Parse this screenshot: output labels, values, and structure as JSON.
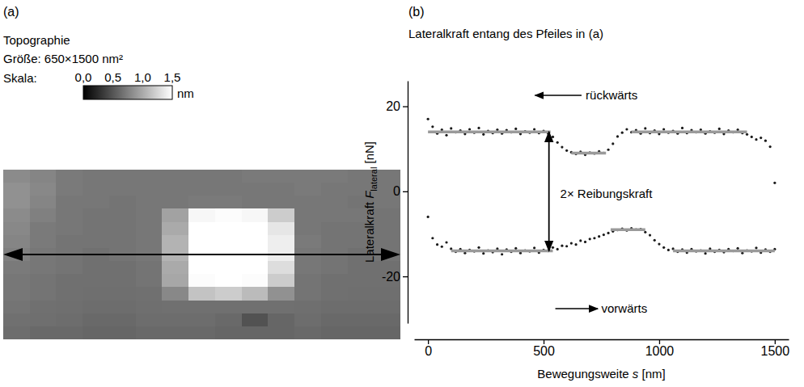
{
  "chart_data": [
    {
      "type": "heatmap",
      "label": "(a)",
      "title": "Topographie",
      "subtitle": "Größe: 650×1500 nm²",
      "tick_labels": false,
      "colorbar": {
        "title": "Skala:",
        "range": [
          0,
          1.5
        ],
        "ticks": [
          {
            "value": 0,
            "label": "0,0"
          },
          {
            "value": 0.5,
            "label": "0,5"
          },
          {
            "value": 1,
            "label": "1,0"
          },
          {
            "value": 1.5,
            "label": "1,5"
          }
        ],
        "unit": "nm"
      },
      "cells": [
        [
          0.82,
          0.78,
          0.72,
          0.7,
          0.7,
          0.7,
          0.7,
          0.7,
          0.7,
          0.72,
          0.72,
          0.72,
          0.72,
          0.7,
          0.7
        ],
        [
          0.85,
          0.8,
          0.72,
          0.7,
          0.7,
          0.7,
          0.7,
          0.7,
          0.7,
          0.7,
          0.7,
          0.72,
          0.7,
          0.7,
          0.7
        ],
        [
          0.85,
          0.78,
          0.7,
          0.7,
          0.68,
          0.7,
          0.7,
          0.72,
          0.72,
          0.7,
          0.7,
          0.7,
          0.7,
          0.68,
          0.7
        ],
        [
          0.82,
          0.75,
          0.7,
          0.68,
          0.68,
          0.7,
          0.95,
          1.45,
          1.48,
          1.45,
          1.2,
          0.7,
          0.7,
          0.7,
          0.68
        ],
        [
          0.8,
          0.72,
          0.7,
          0.68,
          0.68,
          0.7,
          1.0,
          1.5,
          1.5,
          1.5,
          1.35,
          0.7,
          0.68,
          0.68,
          0.68
        ],
        [
          0.78,
          0.72,
          0.68,
          0.68,
          0.68,
          0.7,
          1.05,
          1.5,
          1.5,
          1.5,
          1.4,
          0.72,
          0.68,
          0.68,
          0.68
        ],
        [
          0.75,
          0.7,
          0.68,
          0.66,
          0.68,
          0.7,
          1.05,
          1.5,
          1.5,
          1.5,
          1.4,
          0.7,
          0.68,
          0.66,
          0.68
        ],
        [
          0.72,
          0.7,
          0.68,
          0.66,
          0.66,
          0.68,
          1.0,
          1.5,
          1.5,
          1.5,
          1.3,
          0.7,
          0.68,
          0.66,
          0.66
        ],
        [
          0.7,
          0.68,
          0.66,
          0.66,
          0.66,
          0.68,
          0.98,
          1.48,
          1.5,
          1.48,
          1.2,
          0.68,
          0.66,
          0.66,
          0.66
        ],
        [
          0.7,
          0.68,
          0.66,
          0.65,
          0.65,
          0.66,
          0.8,
          1.15,
          1.2,
          1.1,
          0.85,
          0.68,
          0.66,
          0.65,
          0.65
        ],
        [
          0.68,
          0.66,
          0.65,
          0.64,
          0.64,
          0.65,
          0.66,
          0.66,
          0.66,
          0.66,
          0.66,
          0.65,
          0.64,
          0.64,
          0.64
        ],
        [
          0.66,
          0.65,
          0.64,
          0.62,
          0.62,
          0.64,
          0.64,
          0.64,
          0.62,
          0.48,
          0.6,
          0.64,
          0.62,
          0.62,
          0.62
        ],
        [
          0.64,
          0.62,
          0.62,
          0.6,
          0.6,
          0.62,
          0.62,
          0.62,
          0.6,
          0.6,
          0.6,
          0.62,
          0.6,
          0.6,
          0.6
        ]
      ]
    },
    {
      "type": "scatter",
      "label": "(b)",
      "title": "Lateralkraft entang des Pfeiles in (a)",
      "xlabel": [
        "Bewegungsweite ",
        "s",
        " [nm]"
      ],
      "ylabel": [
        "Lateralkraft ",
        "F",
        "lateral",
        " [nN]"
      ],
      "xlim": [
        -60,
        1560
      ],
      "ylim": [
        -31,
        26
      ],
      "xticks": [
        0,
        500,
        1000,
        1500
      ],
      "yticks": [
        -20,
        0,
        20
      ],
      "grid": false,
      "annotations": [
        "rückwärts",
        "vorwärts",
        "2× Reibungskraft"
      ],
      "series": [
        {
          "type": "scatter",
          "marker": "dot",
          "color": "#1a1a1a",
          "x": [
            0,
            20,
            40,
            60,
            80,
            100,
            120,
            140,
            160,
            180,
            200,
            220,
            240,
            260,
            280,
            300,
            320,
            340,
            360,
            380,
            400,
            420,
            440,
            460,
            480,
            500,
            520,
            540,
            560,
            580,
            600,
            620,
            640,
            660,
            680,
            700,
            720,
            740,
            760,
            780,
            800,
            820,
            840,
            860,
            880,
            900,
            920,
            940,
            960,
            980,
            1000,
            1020,
            1040,
            1060,
            1080,
            1100,
            1120,
            1140,
            1160,
            1180,
            1200,
            1220,
            1240,
            1260,
            1280,
            1300,
            1320,
            1340,
            1360,
            1380,
            1400,
            1420,
            1440,
            1460,
            1480,
            1500
          ],
          "values": [
            17,
            15.2,
            13.6,
            14.5,
            13.2,
            14.8,
            13.9,
            14.3,
            13.5,
            14.6,
            13.8,
            14.9,
            13.4,
            14.2,
            13.7,
            14.5,
            13.6,
            14.4,
            13.9,
            14.7,
            13.5,
            14.1,
            13.8,
            14.6,
            13.7,
            14.2,
            13.6,
            12.8,
            11.5,
            10.4,
            9.6,
            9.2,
            8.8,
            9.3,
            8.6,
            9.1,
            8.9,
            9.4,
            9.0,
            9.8,
            11.2,
            12.9,
            13.8,
            14.6,
            13.9,
            14.4,
            13.6,
            14.8,
            13.7,
            14.3,
            13.5,
            14.6,
            13.8,
            14.2,
            13.6,
            14.9,
            13.7,
            14.4,
            13.9,
            14.5,
            13.6,
            14.1,
            13.8,
            14.7,
            13.5,
            14.3,
            13.9,
            14.5,
            13.7,
            13.4,
            12.8,
            12.2,
            12.6,
            11.9,
            10.5,
            2.0
          ]
        },
        {
          "type": "scatter",
          "marker": "dot",
          "color": "#1a1a1a",
          "x": [
            0,
            20,
            40,
            60,
            80,
            100,
            120,
            140,
            160,
            180,
            200,
            220,
            240,
            260,
            280,
            300,
            320,
            340,
            360,
            380,
            400,
            420,
            440,
            460,
            480,
            500,
            520,
            540,
            560,
            580,
            600,
            620,
            640,
            660,
            680,
            700,
            720,
            740,
            760,
            780,
            800,
            820,
            840,
            860,
            880,
            900,
            920,
            940,
            960,
            980,
            1000,
            1020,
            1040,
            1060,
            1080,
            1100,
            1120,
            1140,
            1160,
            1180,
            1200,
            1220,
            1240,
            1260,
            1280,
            1300,
            1320,
            1340,
            1360,
            1380,
            1400,
            1420,
            1440,
            1460,
            1480,
            1500
          ],
          "values": [
            -6,
            -11,
            -12.5,
            -13,
            -12,
            -13.5,
            -14.2,
            -13.6,
            -14.5,
            -13.8,
            -14.1,
            -13.2,
            -14.6,
            -13.9,
            -14.3,
            -13.5,
            -14.8,
            -13.7,
            -14.2,
            -13.4,
            -14.5,
            -13.9,
            -14.1,
            -13.3,
            -14.4,
            -13.8,
            -14.0,
            -13.2,
            -13.6,
            -12.8,
            -12.9,
            -12.2,
            -12.5,
            -11.6,
            -11.9,
            -11.2,
            -11.0,
            -10.6,
            -10.2,
            -9.8,
            -9.4,
            -9.1,
            -8.8,
            -9.2,
            -8.7,
            -9.0,
            -8.9,
            -9.6,
            -10.3,
            -11.5,
            -12.4,
            -13.2,
            -13.8,
            -13.5,
            -14.2,
            -13.7,
            -14.4,
            -13.6,
            -14.1,
            -13.9,
            -14.6,
            -13.5,
            -14.2,
            -13.8,
            -14.3,
            -13.6,
            -14.0,
            -13.4,
            -14.5,
            -13.9,
            -14.1,
            -13.3,
            -14.4,
            -13.7,
            -14.2,
            -13.6
          ]
        },
        {
          "type": "line",
          "line_style": "solid",
          "color": "#9a9a9a",
          "x": [
            0,
            530,
            575,
            620,
            770,
            825,
            880,
            1380
          ],
          "values": [
            14,
            14,
            null,
            9,
            9,
            null,
            14,
            14
          ]
        },
        {
          "type": "line",
          "line_style": "solid",
          "color": "#9a9a9a",
          "x": [
            100,
            540,
            670,
            790,
            940,
            1000,
            1060,
            1500
          ],
          "values": [
            -14,
            -14,
            null,
            -9,
            -9,
            null,
            -14,
            -14
          ]
        }
      ]
    }
  ]
}
